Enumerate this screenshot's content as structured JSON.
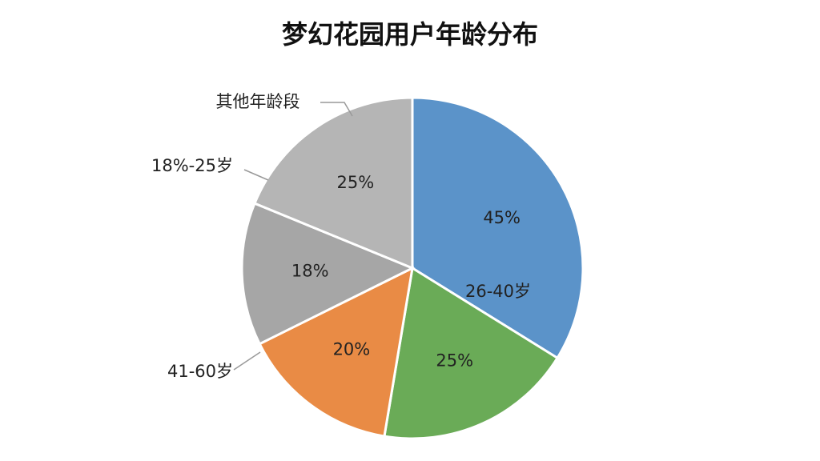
{
  "chart_data": {
    "type": "pie",
    "title": "梦幻花园用户年龄分布",
    "categories": [
      null,
      "26-40岁",
      "41-60岁",
      "18%-25岁",
      "其他年龄段"
    ],
    "values": [
      45,
      25,
      20,
      18,
      25
    ],
    "value_labels": [
      "45%",
      "25%",
      "20%",
      "18%",
      "25%"
    ],
    "colors": [
      "#5b93c9",
      "#6aab57",
      "#e98b45",
      "#a6a6a6",
      "#b5b5b5"
    ]
  }
}
